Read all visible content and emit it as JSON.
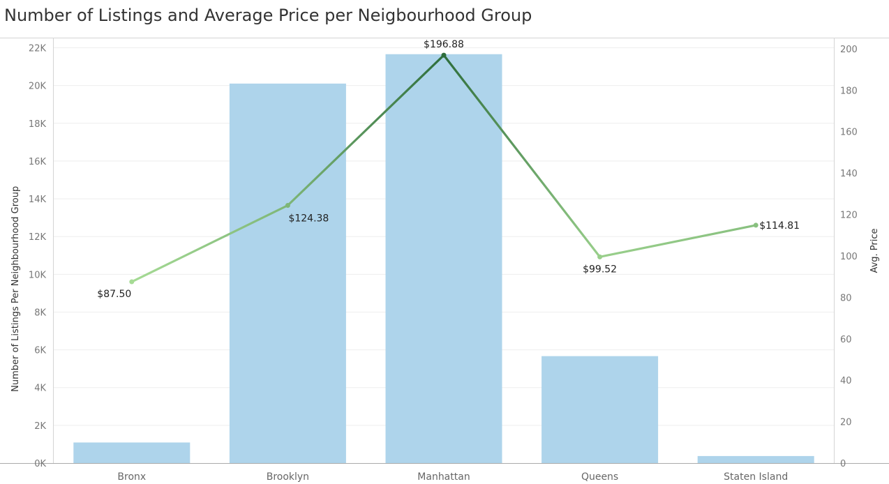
{
  "title": "Number of Listings and Average Price per Neigbourhood Group",
  "chart_data": {
    "type": "bar",
    "title": "Number of Listings and Average Price per Neigbourhood Group",
    "categories": [
      "Bronx",
      "Brooklyn",
      "Manhattan",
      "Queens",
      "Staten Island"
    ],
    "series": [
      {
        "kind": "bar",
        "axis": "left",
        "values": [
          1091,
          20104,
          21661,
          5666,
          373
        ],
        "color": "#aed4eb"
      },
      {
        "kind": "line",
        "axis": "right",
        "values": [
          87.5,
          124.38,
          196.88,
          99.52,
          114.81
        ],
        "labels": [
          "$87.50",
          "$124.38",
          "$196.88",
          "$99.52",
          "$114.81"
        ],
        "color_scale": [
          "#a6db95",
          "#2e6e3c"
        ]
      }
    ],
    "ylabel_left": "Number of Listings Per Neighbourhood Group",
    "ylabel_right": "Avg. Price",
    "ylim_left": [
      0,
      22500
    ],
    "ylim_right": [
      0,
      205
    ],
    "yticks_left": [
      0,
      2000,
      4000,
      6000,
      8000,
      10000,
      12000,
      14000,
      16000,
      18000,
      20000,
      22000
    ],
    "yticks_left_labels": [
      "0K",
      "2K",
      "4K",
      "6K",
      "8K",
      "10K",
      "12K",
      "14K",
      "16K",
      "18K",
      "20K",
      "22K"
    ],
    "yticks_right": [
      0,
      20,
      40,
      60,
      80,
      100,
      120,
      140,
      160,
      180,
      200
    ],
    "yticks_right_labels": [
      "0",
      "20",
      "40",
      "60",
      "80",
      "100",
      "120",
      "140",
      "160",
      "180",
      "200"
    ],
    "grid": true,
    "legend": "none"
  }
}
